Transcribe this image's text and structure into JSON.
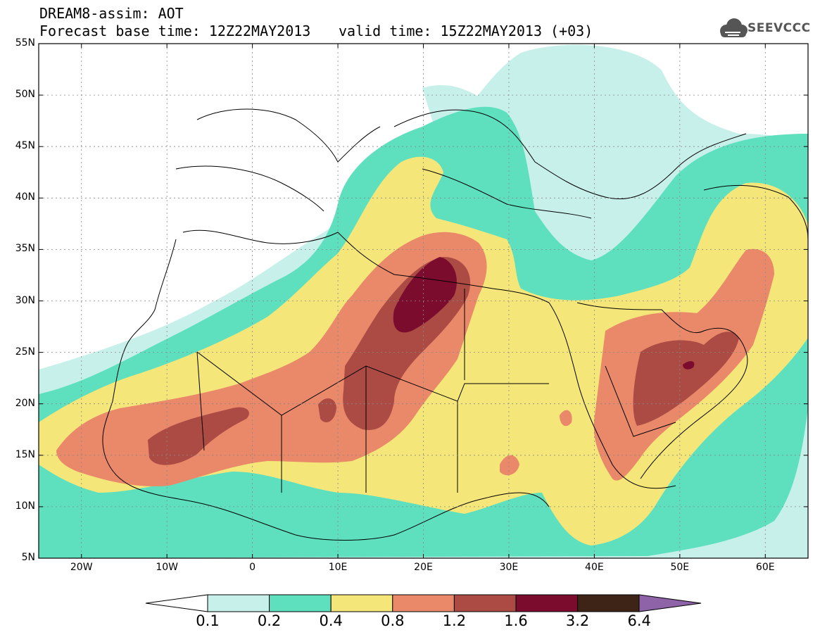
{
  "title": {
    "line1": "DREAM8-assim: AOT",
    "line2": "Forecast base time: 12Z22MAY2013",
    "valid": "valid time: 15Z22MAY2013 (+03)"
  },
  "logo": {
    "text": "SEEVCCC",
    "icon": "cloud-icon"
  },
  "axes": {
    "lat_labels": [
      "55N",
      "50N",
      "45N",
      "40N",
      "35N",
      "30N",
      "25N",
      "20N",
      "15N",
      "10N",
      "5N"
    ],
    "lon_labels": [
      "20W",
      "10W",
      "0",
      "10E",
      "20E",
      "30E",
      "40E",
      "50E",
      "60E"
    ]
  },
  "legend": {
    "labels": [
      "0.1",
      "0.2",
      "0.4",
      "0.8",
      "1.2",
      "1.6",
      "3.2",
      "6.4"
    ],
    "colors": {
      "below": "#ffffff",
      "c1": "#c8f0ea",
      "c2": "#5ee0bf",
      "c3": "#f5e67a",
      "c4": "#e9896a",
      "c5": "#ac4b44",
      "c6": "#7c0c2e",
      "c7": "#3e2317",
      "above": "#8e63a8"
    }
  }
}
